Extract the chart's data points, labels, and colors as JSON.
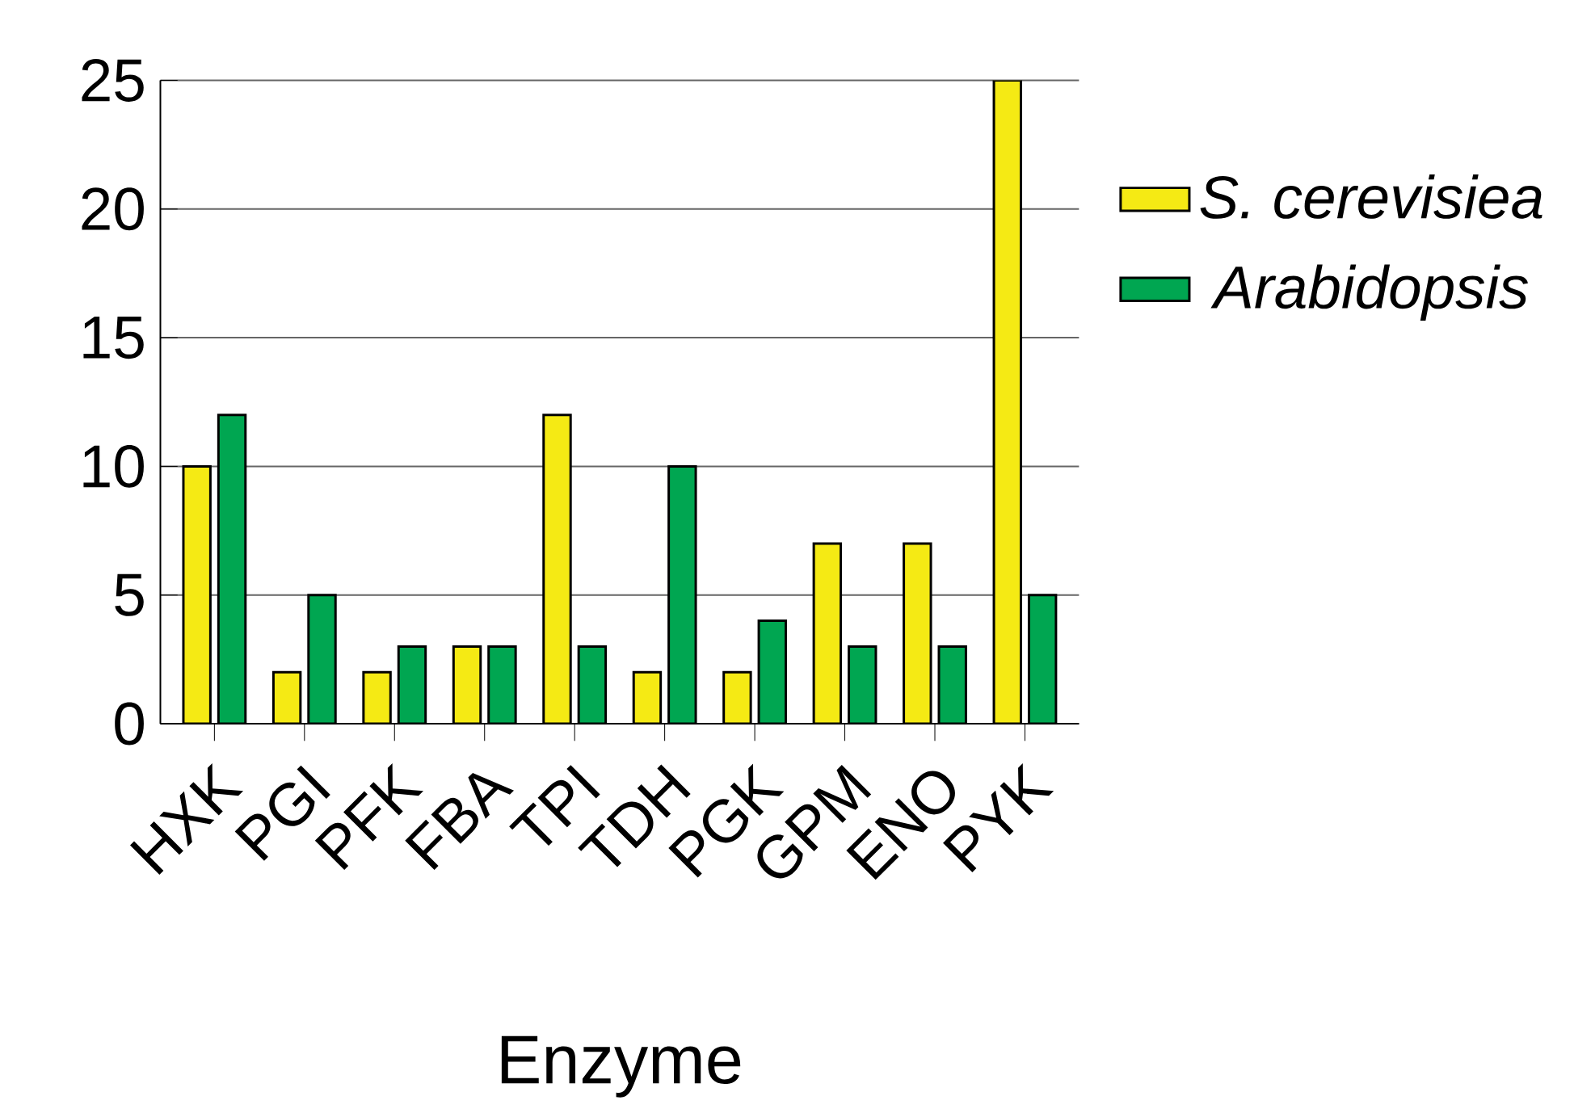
{
  "chart_data": {
    "type": "bar",
    "xlabel": "Enzyme",
    "categories": [
      "HXK",
      "PGI",
      "PFK",
      "FBA",
      "TPI",
      "TDH",
      "PGK",
      "GPM",
      "ENO",
      "PYK"
    ],
    "series": [
      {
        "name": "S. cerevisiea",
        "color": "#f5ea14",
        "values": [
          10,
          2,
          2,
          3,
          12,
          2,
          2,
          7,
          7,
          25
        ]
      },
      {
        "name": "Arabidopsis",
        "color": "#00a651",
        "values": [
          12,
          5,
          3,
          3,
          3,
          10,
          4,
          3,
          3,
          5
        ]
      }
    ],
    "ylim": [
      0,
      25
    ],
    "yticks": [
      0,
      5,
      10,
      15,
      20,
      25
    ],
    "grid": "y",
    "legend": "right"
  }
}
